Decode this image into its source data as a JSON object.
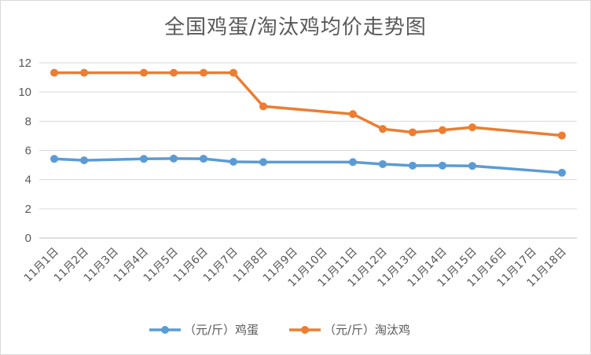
{
  "chart_data": {
    "type": "line",
    "title": "全国鸡蛋/淘汰鸡均价走势图",
    "categories": [
      "11月1日",
      "11月2日",
      "11月3日",
      "11月4日",
      "11月5日",
      "11月6日",
      "11月7日",
      "11月8日",
      "11月9日",
      "11月10日",
      "11月11日",
      "11月12日",
      "11月13日",
      "11月14日",
      "11月15日",
      "11月16日",
      "11月17日",
      "11月18日"
    ],
    "ylim": [
      0,
      12
    ],
    "yticks": [
      0,
      2,
      4,
      6,
      8,
      10,
      12
    ],
    "grid": true,
    "legend_position": "bottom",
    "series": [
      {
        "name": "（元/斤）鸡蛋",
        "color": "#5b9bd5",
        "values": [
          5.42,
          5.32,
          null,
          5.42,
          5.44,
          5.43,
          5.22,
          5.2,
          null,
          null,
          5.2,
          5.06,
          4.96,
          4.96,
          4.94,
          null,
          null,
          4.47
        ]
      },
      {
        "name": "（元/斤）淘汰鸡",
        "color": "#ed7d31",
        "values": [
          11.32,
          11.32,
          null,
          11.32,
          11.32,
          11.32,
          11.32,
          9.02,
          null,
          null,
          8.49,
          7.47,
          7.24,
          7.39,
          7.58,
          null,
          null,
          7.02
        ]
      }
    ]
  }
}
